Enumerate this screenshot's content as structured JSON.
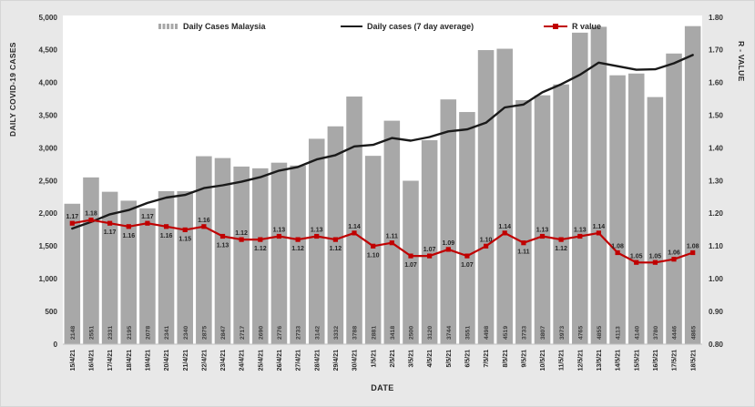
{
  "figure": {
    "background": "#e8e8e8",
    "plot_background": "#ffffff"
  },
  "chart_data": {
    "type": "combo-bar-line",
    "title": "",
    "xlabel": "DATE",
    "ylabel_left": "DAILY COVID-19 CASES",
    "ylabel_right": "R - VALUE",
    "ylim_left": [
      0,
      5000
    ],
    "ylim_right": [
      0.8,
      1.8
    ],
    "grid": false,
    "legend_position": "top-inside",
    "y_left_ticks": [
      "5,000",
      "4,500",
      "4,000",
      "3,500",
      "3,000",
      "2,500",
      "2,000",
      "1,500",
      "1,000",
      "500",
      "0"
    ],
    "y_left_tick_values": [
      5000,
      4500,
      4000,
      3500,
      3000,
      2500,
      2000,
      1500,
      1000,
      500,
      0
    ],
    "y_right_ticks": [
      "1.80",
      "1.70",
      "1.60",
      "1.50",
      "1.40",
      "1.30",
      "1.20",
      "1.10",
      "1.00",
      "0.90",
      "0.80"
    ],
    "y_right_tick_values": [
      1.8,
      1.7,
      1.6,
      1.5,
      1.4,
      1.3,
      1.2,
      1.1,
      1.0,
      0.9,
      0.8
    ],
    "categories": [
      "15/4/21",
      "16/4/21",
      "17/4/21",
      "18/4/21",
      "19/4/21",
      "20/4/21",
      "21/4/21",
      "22/4/21",
      "23/4/21",
      "24/4/21",
      "25/4/21",
      "26/4/21",
      "27/4/21",
      "28/4/21",
      "29/4/21",
      "30/4/21",
      "1/5/21",
      "2/5/21",
      "3/5/21",
      "4/5/21",
      "5/5/21",
      "6/5/21",
      "7/5/21",
      "8/5/21",
      "9/5/21",
      "10/5/21",
      "11/5/21",
      "12/5/21",
      "13/5/21",
      "14/5/21",
      "15/5/21",
      "16/5/21",
      "17/5/21",
      "18/5/21"
    ],
    "series": [
      {
        "name": "Daily Cases Malaysia",
        "type": "bar",
        "axis": "left",
        "color": "#a8a8a8",
        "values": [
          2148,
          2551,
          2331,
          2195,
          2078,
          2341,
          2340,
          2875,
          2847,
          2717,
          2690,
          2776,
          2733,
          3142,
          3332,
          3788,
          2881,
          3418,
          2500,
          3120,
          3744,
          3551,
          4498,
          4519,
          3733,
          3807,
          3973,
          4765,
          4855,
          4113,
          4140,
          3780,
          4446,
          4865
        ]
      },
      {
        "name": "Daily cases (7 day average)",
        "type": "line",
        "axis": "left",
        "color": "#1a1a1a",
        "values": [
          1769,
          1869,
          1986,
          2051,
          2160,
          2242,
          2283,
          2387,
          2430,
          2485,
          2555,
          2655,
          2711,
          2826,
          2891,
          3025,
          3049,
          3153,
          3113,
          3169,
          3255,
          3286,
          3387,
          3621,
          3666,
          3853,
          3975,
          4121,
          4307,
          4252,
          4198,
          4205,
          4296,
          4423
        ]
      },
      {
        "name": "R value",
        "type": "line-markers",
        "axis": "right",
        "color": "#c00000",
        "values": [
          1.17,
          1.18,
          1.17,
          1.16,
          1.17,
          1.16,
          1.15,
          1.16,
          1.13,
          1.12,
          1.12,
          1.13,
          1.12,
          1.13,
          1.12,
          1.14,
          1.1,
          1.11,
          1.07,
          1.07,
          1.09,
          1.07,
          1.1,
          1.14,
          1.11,
          1.13,
          1.12,
          1.13,
          1.14,
          1.08,
          1.05,
          1.05,
          1.06,
          1.08
        ],
        "labels": [
          "1.17",
          "1.18",
          "1.17",
          "1.16",
          "1.17",
          "1.16",
          "1.15",
          "1.16",
          "1.13",
          "1.12",
          "1.12",
          "1.13",
          "1.12",
          "1.13",
          "1.12",
          "1.14",
          "1.10",
          "1.11",
          "1.07",
          "1.07",
          "1.09",
          "1.07",
          "1.10",
          "1.14",
          "1.11",
          "1.13",
          "1.12",
          "1.13",
          "1.14",
          "1.08",
          "1.05",
          "1.05",
          "1.06",
          "1.08"
        ],
        "label_positions": [
          "above",
          "above",
          "below",
          "below",
          "above",
          "below",
          "below",
          "above",
          "below",
          "above",
          "below",
          "above",
          "below",
          "above",
          "below",
          "above",
          "below",
          "above",
          "below",
          "above",
          "above",
          "below",
          "above",
          "above",
          "below",
          "above",
          "below",
          "above",
          "above",
          "above",
          "above",
          "above",
          "above",
          "above"
        ]
      }
    ]
  }
}
